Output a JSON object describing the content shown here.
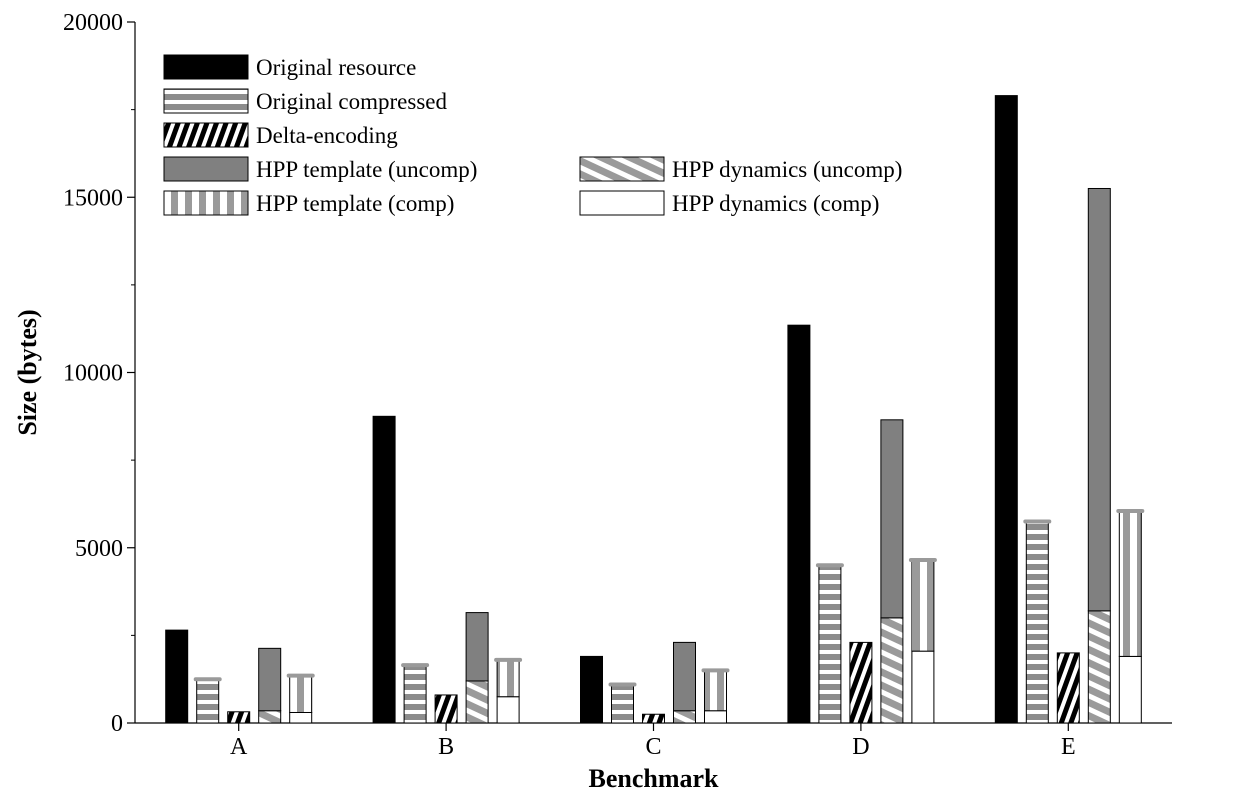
{
  "chart_data": {
    "type": "bar",
    "stacked_groups": true,
    "xlabel": "Benchmark",
    "ylabel": "Size (bytes)",
    "ylim": [
      0,
      20000
    ],
    "yticks": [
      0,
      5000,
      10000,
      15000,
      20000
    ],
    "categories": [
      "A",
      "B",
      "C",
      "D",
      "E"
    ],
    "legend_placement": "top-left",
    "bars": [
      {
        "key": "orig",
        "segments": [
          {
            "series": "Original resource"
          }
        ]
      },
      {
        "key": "origc",
        "segments": [
          {
            "series": "Original compressed"
          }
        ]
      },
      {
        "key": "delta",
        "segments": [
          {
            "series": "Delta-encoding"
          }
        ]
      },
      {
        "key": "hpp_uncomp",
        "segments": [
          {
            "series": "HPP dynamics (uncomp)"
          },
          {
            "series": "HPP template (uncomp)"
          }
        ]
      },
      {
        "key": "hpp_comp",
        "segments": [
          {
            "series": "HPP dynamics (comp)"
          },
          {
            "series": "HPP template (comp)"
          }
        ]
      }
    ],
    "series": [
      {
        "name": "Original resource",
        "values": [
          2650,
          8750,
          1900,
          11350,
          17900
        ]
      },
      {
        "name": "Original compressed",
        "values": [
          1250,
          1650,
          1100,
          4500,
          5750
        ]
      },
      {
        "name": "Delta-encoding",
        "values": [
          320,
          800,
          250,
          2300,
          2000
        ]
      },
      {
        "name": "HPP template (uncomp)",
        "values": [
          1780,
          1950,
          1950,
          5650,
          12050
        ]
      },
      {
        "name": "HPP dynamics (uncomp)",
        "values": [
          350,
          1200,
          350,
          3000,
          3200
        ]
      },
      {
        "name": "HPP template (comp)",
        "values": [
          1050,
          1050,
          1150,
          2600,
          4150
        ]
      },
      {
        "name": "HPP dynamics (comp)",
        "values": [
          300,
          750,
          350,
          2050,
          1900
        ]
      }
    ]
  }
}
